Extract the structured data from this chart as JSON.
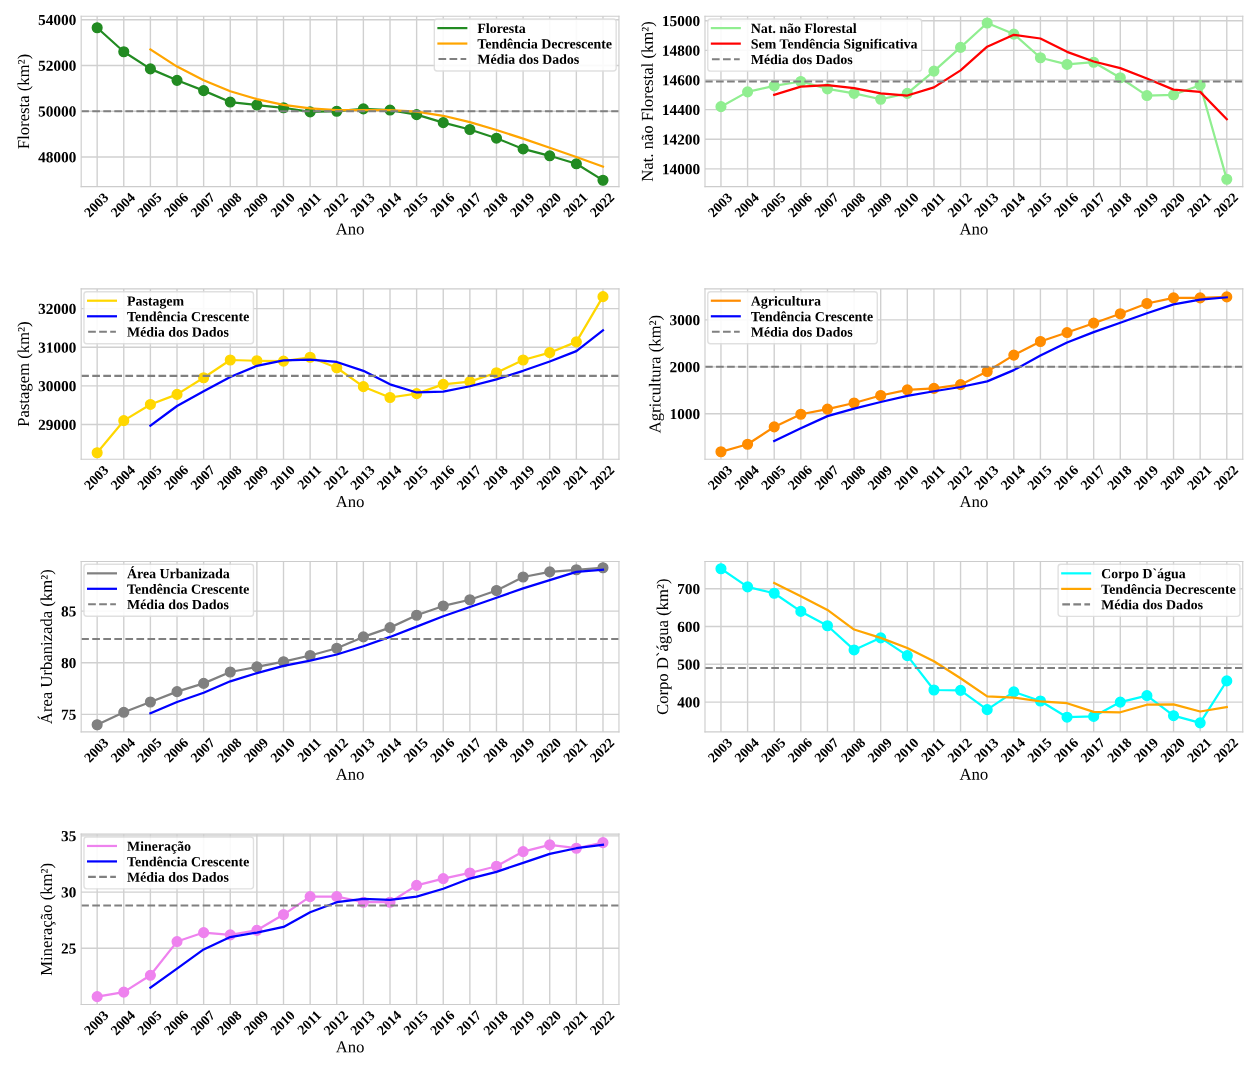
{
  "chart_data": [
    {
      "type": "line",
      "xlabel": "Ano",
      "ylabel": "Floresta (km²)",
      "categories": [
        "2003",
        "2004",
        "2005",
        "2006",
        "2007",
        "2008",
        "2009",
        "2010",
        "2011",
        "2012",
        "2013",
        "2014",
        "2015",
        "2016",
        "2017",
        "2018",
        "2019",
        "2020",
        "2021",
        "2022"
      ],
      "ylim": [
        46700,
        54150
      ],
      "yticks": [
        48000,
        50000,
        52000,
        54000
      ],
      "grid": true,
      "legend": "top right",
      "series": [
        {
          "name": "Floresta",
          "color": "#228b22",
          "marker": "circle",
          "values": [
            53650,
            52600,
            51850,
            51350,
            50900,
            50400,
            50270,
            50150,
            49970,
            50000,
            50100,
            50050,
            49850,
            49500,
            49200,
            48820,
            48350,
            48050,
            47700,
            46980
          ]
        },
        {
          "name": "Tendência Decrescente",
          "color": "#ffa500",
          "marker": "none",
          "values": [
            null,
            null,
            52700,
            51950,
            51350,
            50870,
            50530,
            50280,
            50120,
            50050,
            50050,
            50050,
            49980,
            49800,
            49520,
            49180,
            48800,
            48400,
            48000,
            47580
          ]
        }
      ],
      "ref_lines": [
        {
          "axis": "y",
          "value": 50000,
          "label": "Média dos Dados",
          "color": "#808080",
          "line_style": "dashed"
        }
      ]
    },
    {
      "type": "line",
      "xlabel": "Ano",
      "ylabel": "Nat. não Florestal (km²)",
      "categories": [
        "2003",
        "2004",
        "2005",
        "2006",
        "2007",
        "2008",
        "2009",
        "2010",
        "2011",
        "2012",
        "2013",
        "2014",
        "2015",
        "2016",
        "2017",
        "2018",
        "2019",
        "2020",
        "2021",
        "2022"
      ],
      "ylim": [
        13880,
        15030
      ],
      "yticks": [
        14000,
        14200,
        14400,
        14600,
        14800,
        15000
      ],
      "grid": true,
      "legend": "top left",
      "series": [
        {
          "name": "Nat. não Florestal",
          "color": "#90ee90",
          "marker": "circle",
          "values": [
            14420,
            14520,
            14560,
            14590,
            14540,
            14510,
            14470,
            14510,
            14660,
            14820,
            14985,
            14910,
            14750,
            14705,
            14720,
            14615,
            14495,
            14500,
            14565,
            13930
          ]
        },
        {
          "name": "Sem Tendência Significativa",
          "color": "#ff0000",
          "marker": "none",
          "values": [
            null,
            null,
            14500,
            14555,
            14565,
            14545,
            14510,
            14495,
            14550,
            14665,
            14825,
            14905,
            14880,
            14790,
            14725,
            14680,
            14610,
            14535,
            14520,
            14335
          ]
        }
      ],
      "ref_lines": [
        {
          "axis": "y",
          "value": 14590,
          "label": "Média dos Dados",
          "color": "#808080",
          "line_style": "dashed"
        }
      ]
    },
    {
      "type": "line",
      "xlabel": "Ano",
      "ylabel": "Pastagem (km²)",
      "categories": [
        "2003",
        "2004",
        "2005",
        "2006",
        "2007",
        "2008",
        "2009",
        "2010",
        "2011",
        "2012",
        "2013",
        "2014",
        "2015",
        "2016",
        "2017",
        "2018",
        "2019",
        "2020",
        "2021",
        "2022"
      ],
      "ylim": [
        28100,
        32510
      ],
      "yticks": [
        29000,
        30000,
        31000,
        32000
      ],
      "grid": true,
      "legend": "top left",
      "series": [
        {
          "name": "Pastagem",
          "color": "#ffd700",
          "marker": "circle",
          "values": [
            28270,
            29100,
            29520,
            29780,
            30210,
            30670,
            30650,
            30640,
            30740,
            30470,
            29980,
            29700,
            29800,
            30040,
            30110,
            30340,
            30670,
            30860,
            31140,
            32310
          ]
        },
        {
          "name": "Tendência Crescente",
          "color": "#0000ff",
          "marker": "none",
          "values": [
            null,
            null,
            28970,
            29480,
            29860,
            30230,
            30520,
            30660,
            30680,
            30620,
            30390,
            30040,
            29830,
            29850,
            29990,
            30170,
            30390,
            30630,
            30900,
            31440
          ]
        }
      ],
      "ref_lines": [
        {
          "axis": "y",
          "value": 30260,
          "label": "Média dos Dados",
          "color": "#808080",
          "line_style": "dashed"
        }
      ]
    },
    {
      "type": "line",
      "xlabel": "Ano",
      "ylabel": "Agricultura (km²)",
      "categories": [
        "2003",
        "2004",
        "2005",
        "2006",
        "2007",
        "2008",
        "2009",
        "2010",
        "2011",
        "2012",
        "2013",
        "2014",
        "2015",
        "2016",
        "2017",
        "2018",
        "2019",
        "2020",
        "2021",
        "2022"
      ],
      "ylim": [
        30,
        3660
      ],
      "yticks": [
        1000,
        2000,
        3000
      ],
      "grid": true,
      "legend": "top left",
      "series": [
        {
          "name": "Agricultura",
          "color": "#ff8c00",
          "marker": "circle",
          "values": [
            190,
            350,
            720,
            990,
            1100,
            1230,
            1390,
            1510,
            1540,
            1620,
            1900,
            2250,
            2540,
            2730,
            2930,
            3130,
            3350,
            3470,
            3470,
            3490
          ]
        },
        {
          "name": "Tendência Crescente",
          "color": "#0000ff",
          "marker": "none",
          "values": [
            null,
            null,
            420,
            690,
            950,
            1110,
            1250,
            1380,
            1480,
            1570,
            1690,
            1930,
            2240,
            2520,
            2740,
            2940,
            3140,
            3330,
            3430,
            3480
          ]
        }
      ],
      "ref_lines": [
        {
          "axis": "y",
          "value": 2000,
          "label": "Média dos Dados",
          "color": "#808080",
          "line_style": "dashed"
        }
      ]
    },
    {
      "type": "line",
      "xlabel": "Ano",
      "ylabel": "Área Urbanizada (km²)",
      "categories": [
        "2003",
        "2004",
        "2005",
        "2006",
        "2007",
        "2008",
        "2009",
        "2010",
        "2011",
        "2012",
        "2013",
        "2014",
        "2015",
        "2016",
        "2017",
        "2018",
        "2019",
        "2020",
        "2021",
        "2022"
      ],
      "ylim": [
        73.3,
        89.8
      ],
      "yticks": [
        75,
        80,
        85
      ],
      "grid": true,
      "legend": "top left",
      "series": [
        {
          "name": "Área Urbanizada",
          "color": "#808080",
          "marker": "circle",
          "values": [
            74.0,
            75.2,
            76.2,
            77.2,
            78.0,
            79.1,
            79.6,
            80.1,
            80.7,
            81.4,
            82.5,
            83.4,
            84.6,
            85.5,
            86.1,
            87.0,
            88.3,
            88.8,
            89.0,
            89.2
          ]
        },
        {
          "name": "Tendência Crescente",
          "color": "#0000ff",
          "marker": "none",
          "values": [
            null,
            null,
            75.1,
            76.2,
            77.1,
            78.2,
            79.0,
            79.7,
            80.2,
            80.8,
            81.6,
            82.5,
            83.5,
            84.5,
            85.4,
            86.3,
            87.2,
            88.0,
            88.8,
            89.0
          ]
        }
      ],
      "ref_lines": [
        {
          "axis": "y",
          "value": 82.3,
          "label": "Média dos Dados",
          "color": "#808080",
          "line_style": "dashed"
        }
      ]
    },
    {
      "type": "line",
      "xlabel": "Ano",
      "ylabel": "Corpo D`água (km²)",
      "categories": [
        "2003",
        "2004",
        "2005",
        "2006",
        "2007",
        "2008",
        "2009",
        "2010",
        "2011",
        "2012",
        "2013",
        "2014",
        "2015",
        "2016",
        "2017",
        "2018",
        "2019",
        "2020",
        "2021",
        "2022"
      ],
      "ylim": [
        321,
        772
      ],
      "yticks": [
        400,
        500,
        600,
        700
      ],
      "grid": true,
      "legend": "top right",
      "series": [
        {
          "name": "Corpo D`água",
          "color": "#00ffff",
          "marker": "circle",
          "values": [
            753,
            705,
            688,
            640,
            602,
            538,
            570,
            523,
            432,
            431,
            380,
            427,
            403,
            360,
            362,
            400,
            417,
            364,
            345,
            456
          ]
        },
        {
          "name": "Tendência Decrescente",
          "color": "#ffa500",
          "marker": "none",
          "values": [
            null,
            null,
            715,
            680,
            644,
            592,
            570,
            543,
            508,
            463,
            415,
            412,
            402,
            397,
            374,
            373,
            393,
            394,
            375,
            387
          ]
        }
      ],
      "ref_lines": [
        {
          "axis": "y",
          "value": 490,
          "label": "Média dos Dados",
          "color": "#808080",
          "line_style": "dashed"
        }
      ]
    },
    {
      "type": "line",
      "xlabel": "Ano",
      "ylabel": "Mineração (km²)",
      "categories": [
        "2003",
        "2004",
        "2005",
        "2006",
        "2007",
        "2008",
        "2009",
        "2010",
        "2011",
        "2012",
        "2013",
        "2014",
        "2015",
        "2016",
        "2017",
        "2018",
        "2019",
        "2020",
        "2021",
        "2022"
      ],
      "ylim": [
        20.0,
        35.15
      ],
      "yticks": [
        25,
        30,
        35
      ],
      "grid": true,
      "legend": "top left",
      "series": [
        {
          "name": "Mineração",
          "color": "#ee82ee",
          "marker": "circle",
          "values": [
            20.7,
            21.1,
            22.6,
            25.6,
            26.4,
            26.2,
            26.6,
            28.0,
            29.6,
            29.6,
            29.1,
            29.1,
            30.6,
            31.2,
            31.7,
            32.3,
            33.6,
            34.2,
            33.9,
            34.4
          ]
        },
        {
          "name": "Tendência Crescente",
          "color": "#0000ff",
          "marker": "none",
          "values": [
            null,
            null,
            21.5,
            23.2,
            24.9,
            26.0,
            26.4,
            26.9,
            28.2,
            29.1,
            29.4,
            29.3,
            29.6,
            30.3,
            31.2,
            31.8,
            32.6,
            33.4,
            33.9,
            34.2
          ]
        }
      ],
      "ref_lines": [
        {
          "axis": "y",
          "value": 28.8,
          "label": "Média dos Dados",
          "color": "#808080",
          "line_style": "dashed"
        }
      ]
    }
  ]
}
